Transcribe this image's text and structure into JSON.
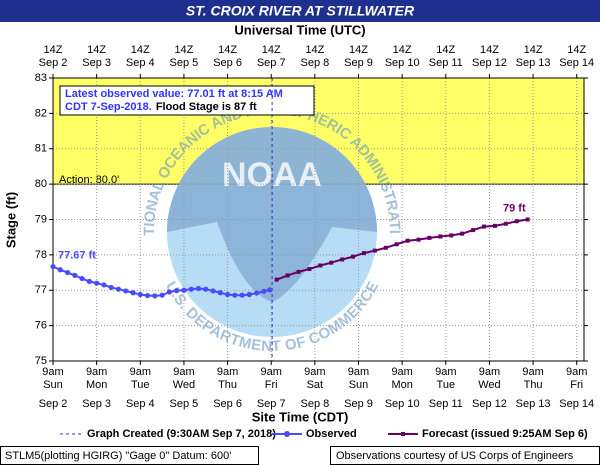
{
  "chart_data": {
    "type": "line",
    "title": "ST. CROIX RIVER AT STILLWATER",
    "top_axis_title": "Universal Time (UTC)",
    "x_axis_title": "Site Time (CDT)",
    "y_axis_title": "Stage (ft)",
    "xlim": [
      0,
      292
    ],
    "xticks": [
      {
        "value": 0,
        "label": "9am"
      },
      {
        "value": 24,
        "label": "9am"
      },
      {
        "value": 48,
        "label": "9am"
      },
      {
        "value": 72,
        "label": "9am"
      },
      {
        "value": 96,
        "label": "9am"
      },
      {
        "value": 120,
        "label": "9am"
      },
      {
        "value": 144,
        "label": "9am"
      },
      {
        "value": 168,
        "label": "9am"
      },
      {
        "value": 192,
        "label": "9am"
      },
      {
        "value": 216,
        "label": "9am"
      },
      {
        "value": 240,
        "label": "9am"
      },
      {
        "value": 264,
        "label": "9am"
      },
      {
        "value": 288,
        "label": "9am"
      }
    ],
    "xtick_days": [
      "Sun",
      "Mon",
      "Tue",
      "Wed",
      "Thu",
      "Fri",
      "Sat",
      "Sun",
      "Mon",
      "Tue",
      "Wed",
      "Thu",
      "Fri"
    ],
    "xtick_dates": [
      "Sep 2",
      "Sep 3",
      "Sep 4",
      "Sep 5",
      "Sep 6",
      "Sep 7",
      "Sep 8",
      "Sep 9",
      "Sep 10",
      "Sep 11",
      "Sep 12",
      "Sep 13",
      "Sep 14"
    ],
    "x2tick_labels": [
      "14Z",
      "14Z",
      "14Z",
      "14Z",
      "14Z",
      "14Z",
      "14Z",
      "14Z",
      "14Z",
      "14Z",
      "14Z",
      "14Z",
      "14Z"
    ],
    "ylim": [
      75,
      83
    ],
    "yticks": [
      75,
      76,
      77,
      78,
      79,
      80,
      81,
      82,
      83
    ],
    "grid": true,
    "action": {
      "value": 80,
      "label": "Action: 80.0'",
      "color": "#ffff66"
    },
    "info": {
      "line1": "Latest observed value: 77.01 ft at 8:15 AM",
      "line2a": "CDT 7-Sep-2018.",
      "line2b": "Flood Stage is 87 ft"
    },
    "created": {
      "x": 120.5,
      "label": "Graph Created (9:30AM Sep 7, 2018)",
      "color": "#3333cc"
    },
    "watermark": {
      "logo": "NOAA",
      "top": "NATIONAL OCEANIC AND ATMOSPHERIC ADMINISTRATION",
      "bottom": "U.S. DEPARTMENT OF COMMERCE"
    },
    "series": [
      {
        "name": "Observed",
        "color": "#4a4aff",
        "marker": "circle",
        "x": [
          0,
          4,
          8,
          12,
          16,
          20,
          24,
          28,
          32,
          36,
          40,
          44,
          48,
          52,
          56,
          60,
          64,
          68,
          72,
          76,
          80,
          84,
          88,
          92,
          96,
          100,
          104,
          108,
          112,
          116,
          119.25
        ],
        "values": [
          77.67,
          77.58,
          77.5,
          77.42,
          77.33,
          77.25,
          77.2,
          77.15,
          77.08,
          77.03,
          76.98,
          76.93,
          76.88,
          76.85,
          76.84,
          76.86,
          76.95,
          76.99,
          77.0,
          77.03,
          77.05,
          77.03,
          76.98,
          76.93,
          76.88,
          76.86,
          76.86,
          76.88,
          76.92,
          76.97,
          77.01
        ],
        "value_labels": [
          "77.67 ft",
          null,
          null,
          null,
          null,
          null,
          null,
          null,
          null,
          null,
          null,
          null,
          null,
          null,
          null,
          null,
          null,
          null,
          null,
          null,
          null,
          null,
          null,
          null,
          null,
          null,
          null,
          null,
          null,
          null,
          null
        ]
      },
      {
        "name": "Forecast (issued 9:25AM Sep 6)",
        "color": "#660066",
        "marker": "square",
        "x": [
          123,
          129,
          135,
          141,
          147,
          153,
          159,
          165,
          171,
          177,
          183,
          189,
          195,
          201,
          207,
          213,
          219,
          225,
          231,
          237,
          243,
          249,
          255,
          261
        ],
        "values": [
          77.3,
          77.42,
          77.52,
          77.6,
          77.7,
          77.78,
          77.87,
          77.95,
          78.05,
          78.12,
          78.2,
          78.3,
          78.4,
          78.43,
          78.48,
          78.52,
          78.55,
          78.6,
          78.7,
          78.8,
          78.82,
          78.88,
          78.95,
          79.0
        ],
        "value_labels": [
          null,
          null,
          null,
          null,
          null,
          null,
          null,
          null,
          null,
          null,
          null,
          null,
          null,
          null,
          null,
          null,
          null,
          null,
          null,
          null,
          null,
          null,
          null,
          "79 ft"
        ]
      }
    ],
    "footer_left": "STLM5(plotting HGIRG) \"Gage 0\" Datum: 600'",
    "footer_right": "Observations courtesy of US Corps of Engineers"
  }
}
